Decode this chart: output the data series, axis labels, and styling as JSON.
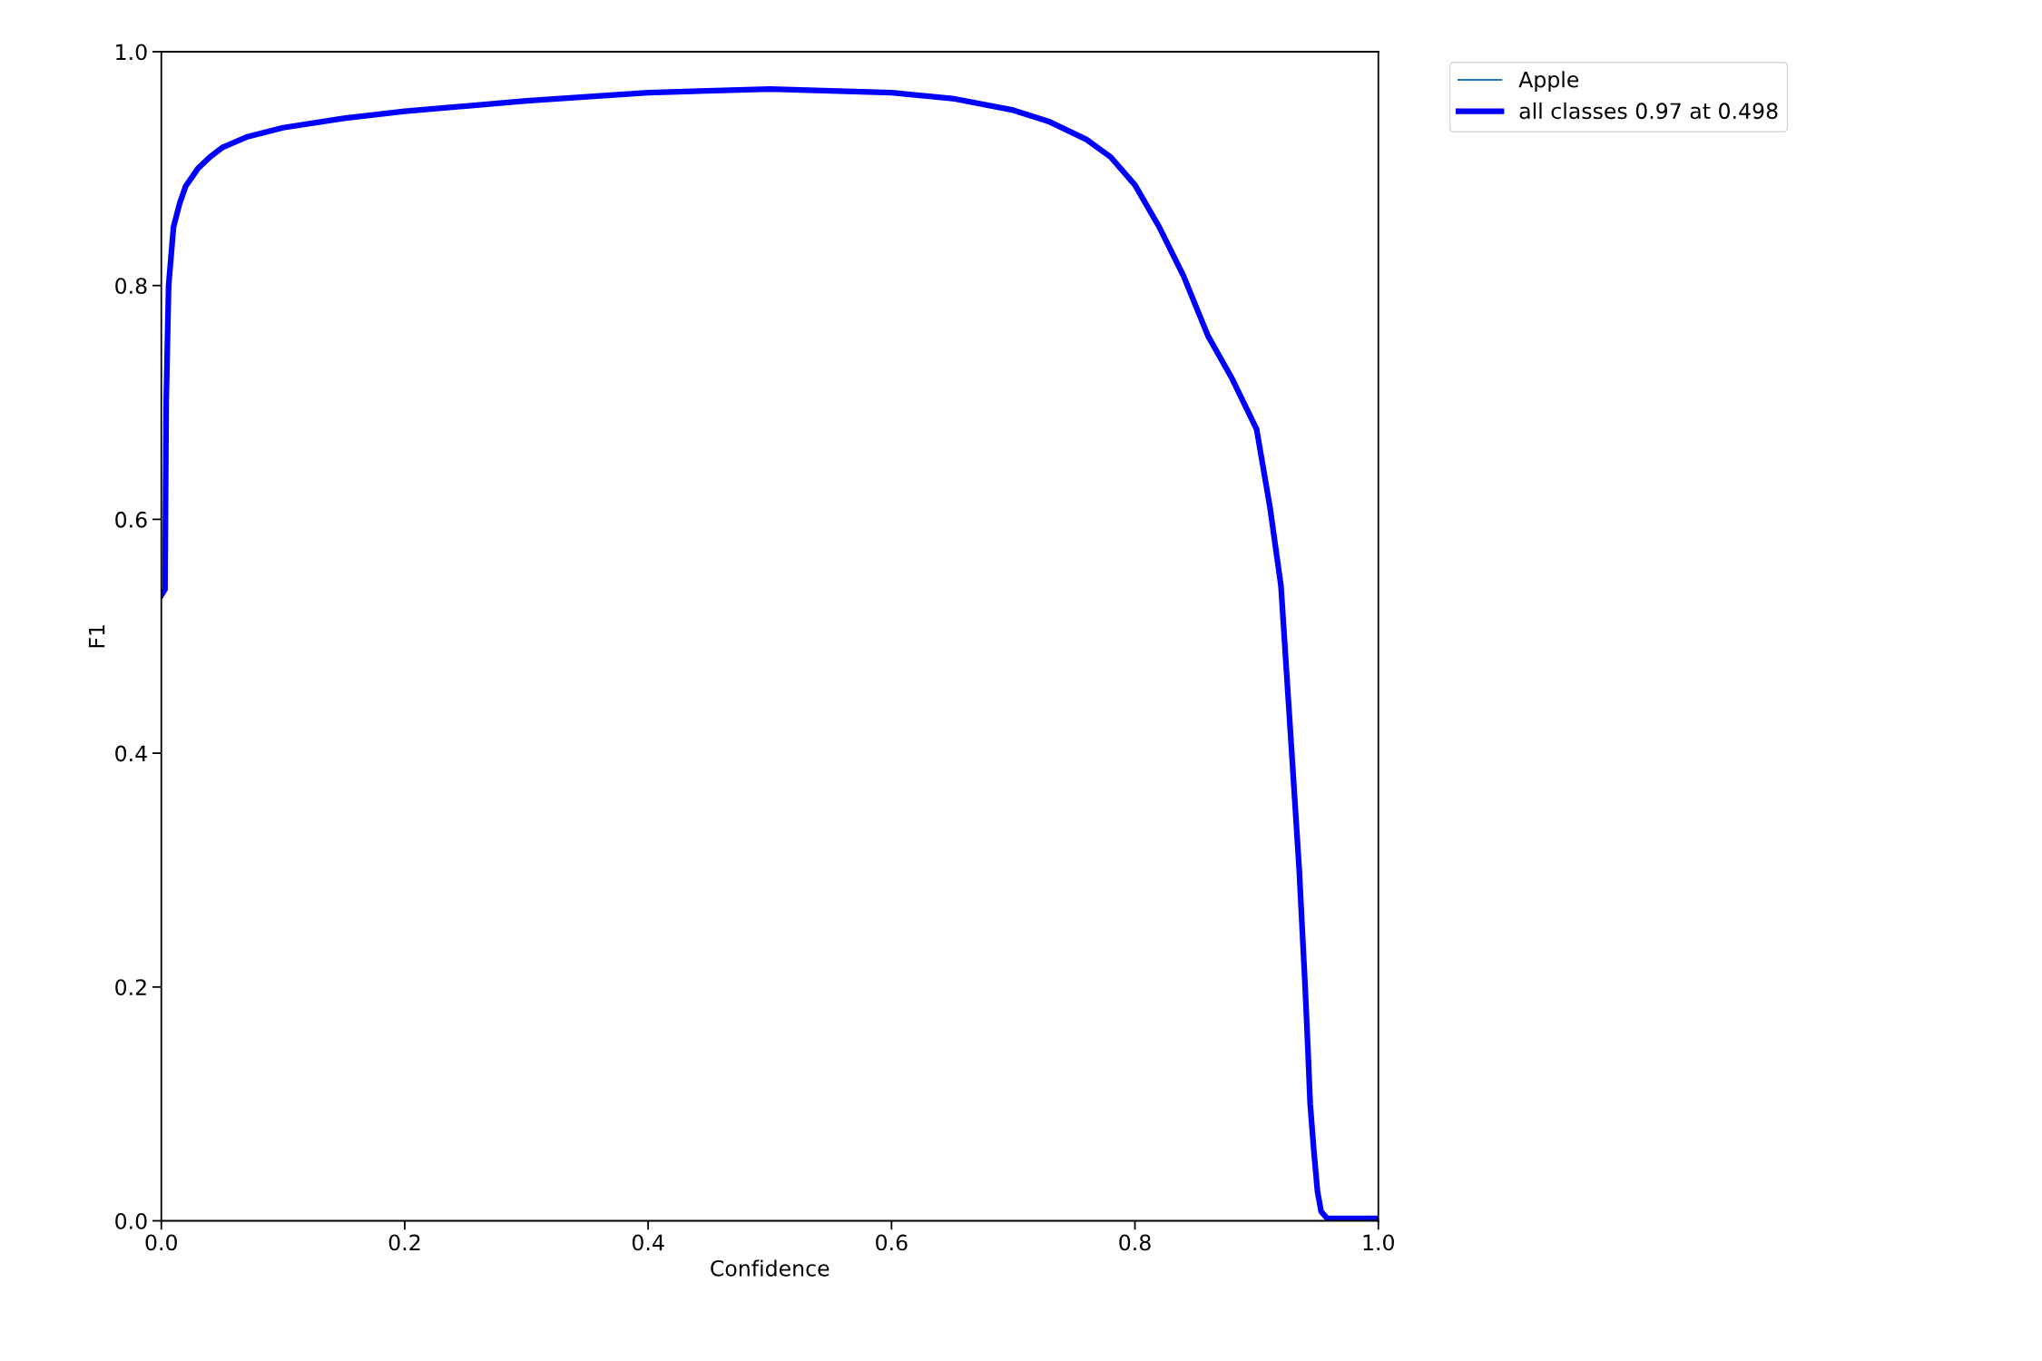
{
  "chart_data": {
    "type": "line",
    "xlabel": "Confidence",
    "ylabel": "F1",
    "xlim": [
      0,
      1
    ],
    "ylim": [
      0,
      1
    ],
    "xticks": [
      {
        "value": 0,
        "label": "0.0"
      },
      {
        "value": 0.2,
        "label": "0.2"
      },
      {
        "value": 0.4,
        "label": "0.4"
      },
      {
        "value": 0.6,
        "label": "0.6"
      },
      {
        "value": 0.8,
        "label": "0.8"
      },
      {
        "value": 1,
        "label": "1.0"
      }
    ],
    "yticks": [
      {
        "value": 0,
        "label": "0.0"
      },
      {
        "value": 0.2,
        "label": "0.2"
      },
      {
        "value": 0.4,
        "label": "0.4"
      },
      {
        "value": 0.6,
        "label": "0.6"
      },
      {
        "value": 0.8,
        "label": "0.8"
      },
      {
        "value": 1,
        "label": "1.0"
      }
    ],
    "legend": "top right",
    "grid": false,
    "marker": "none",
    "x": [
      0,
      0.003,
      0.004,
      0.006,
      0.01,
      0.015,
      0.02,
      0.03,
      0.04,
      0.05,
      0.07,
      0.1,
      0.15,
      0.2,
      0.3,
      0.4,
      0.5,
      0.6,
      0.65,
      0.7,
      0.73,
      0.76,
      0.78,
      0.8,
      0.82,
      0.84,
      0.86,
      0.88,
      0.9,
      0.911,
      0.92,
      0.929,
      0.935,
      0.94,
      0.942,
      0.944,
      0.947,
      0.95,
      0.953,
      0.958,
      1.0
    ],
    "series": [
      {
        "name": "Apple",
        "color": "#1f77b4",
        "values": [
          null,
          null,
          null,
          null,
          null,
          null,
          null,
          null,
          null,
          null,
          null,
          null,
          null,
          null,
          null,
          null,
          null,
          null,
          null,
          null,
          null,
          null,
          null,
          null,
          null,
          null,
          null,
          null,
          null,
          null,
          null,
          null,
          null,
          null,
          null,
          null,
          null,
          null,
          null,
          null,
          null
        ]
      },
      {
        "name": "all classes 0.97 at 0.498",
        "color": "#0000ff",
        "values": [
          0.535,
          0.54,
          0.7,
          0.8,
          0.85,
          0.87,
          0.885,
          0.9,
          0.91,
          0.918,
          0.927,
          0.935,
          0.943,
          0.949,
          0.958,
          0.965,
          0.968,
          0.965,
          0.96,
          0.95,
          0.94,
          0.925,
          0.91,
          0.886,
          0.85,
          0.808,
          0.757,
          0.72,
          0.677,
          0.61,
          0.543,
          0.398,
          0.3,
          0.197,
          0.15,
          0.1,
          0.06,
          0.025,
          0.008,
          0.002,
          0.002
        ]
      }
    ]
  }
}
